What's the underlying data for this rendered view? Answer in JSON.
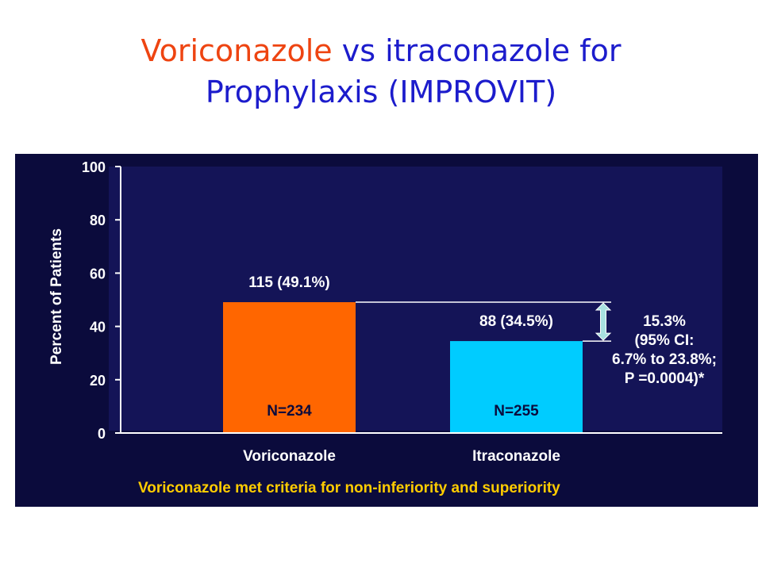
{
  "slide": {
    "title_accent": "Voriconazole",
    "title_rest": " vs itraconazole for",
    "title_line2": "Prophylaxis (IMPROVIT)"
  },
  "colors": {
    "panel": "#0b0b3c",
    "plot": "#141457",
    "voriconazole": "#ff6600",
    "itraconazole": "#00ccff",
    "footnote": "#ffcc00",
    "text": "#ffffff",
    "arrow": "#a8e0e0"
  },
  "chart_data": {
    "type": "bar",
    "title": "",
    "ylabel": "Percent of Patients",
    "xlabel": "",
    "ylim": [
      0,
      100
    ],
    "yticks": [
      0,
      20,
      40,
      60,
      80,
      100
    ],
    "categories": [
      "Voriconazole",
      "Itraconazole"
    ],
    "values": [
      49.1,
      34.5
    ],
    "value_labels": [
      "115 (49.1%)",
      "88 (34.5%)"
    ],
    "n_labels": [
      "N=234",
      "N=255"
    ],
    "difference_annotation": [
      "15.3%",
      "(95% CI:",
      "6.7% to 23.8%;",
      "P =0.0004)*"
    ],
    "footnote": "Voriconazole met criteria for non-inferiority and superiority",
    "grid": false,
    "legend": "none"
  }
}
